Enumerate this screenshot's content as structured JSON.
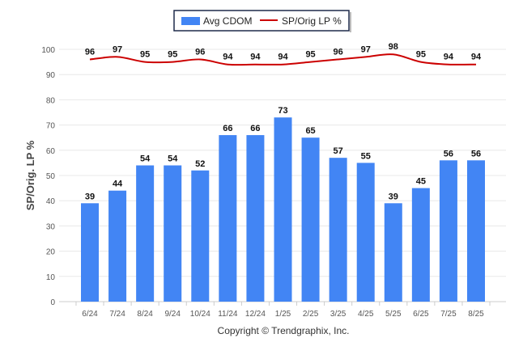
{
  "chart_data": {
    "type": "bar",
    "categories": [
      "6/24",
      "7/24",
      "8/24",
      "9/24",
      "10/24",
      "11/24",
      "12/24",
      "1/25",
      "2/25",
      "3/25",
      "4/25",
      "5/25",
      "6/25",
      "7/25",
      "8/25"
    ],
    "series": [
      {
        "name": "Avg CDOM",
        "type": "bar",
        "color": "#4285f4",
        "values": [
          39,
          44,
          54,
          54,
          52,
          66,
          66,
          73,
          65,
          57,
          55,
          39,
          45,
          56,
          56
        ]
      },
      {
        "name": "SP/Orig LP %",
        "type": "line",
        "color": "#cc0000",
        "values": [
          96,
          97,
          95,
          95,
          96,
          94,
          94,
          94,
          95,
          96,
          97,
          98,
          95,
          94,
          94
        ]
      }
    ],
    "ylabel": "SP/Orig. LP %",
    "xlabel": "",
    "ylim": [
      0,
      100
    ],
    "yticks": [
      0,
      10,
      20,
      30,
      40,
      50,
      60,
      70,
      80,
      90,
      100
    ],
    "grid": true,
    "legend": "top-center"
  },
  "footer": {
    "copyright": "Copyright © Trendgraphix, Inc."
  }
}
